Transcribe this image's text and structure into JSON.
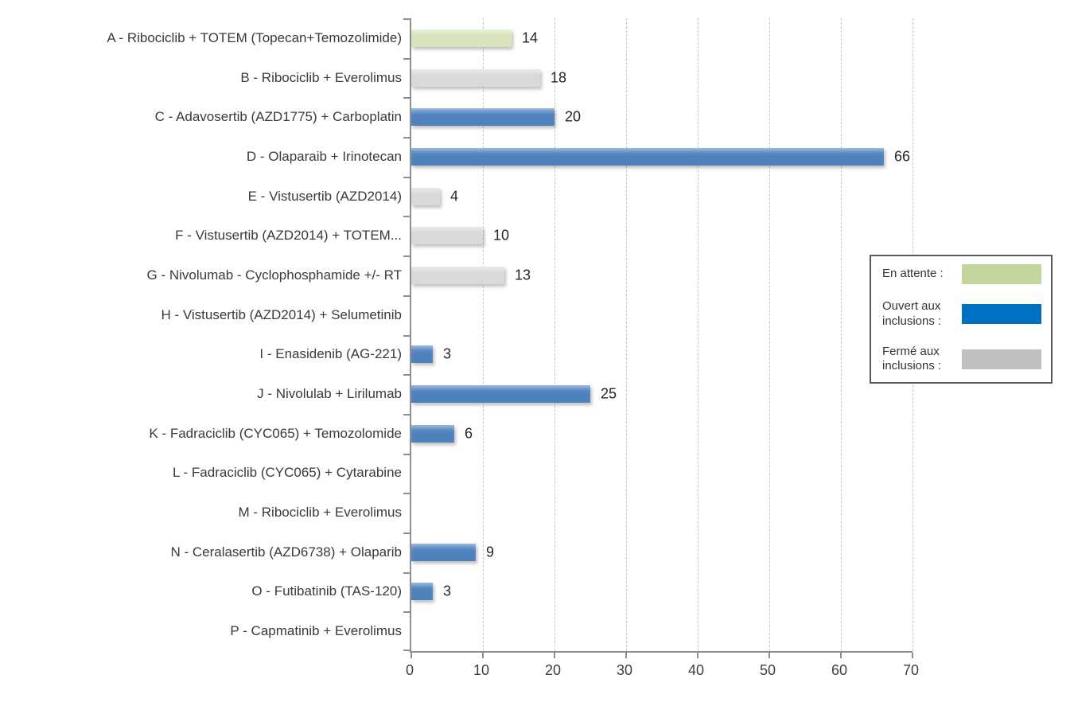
{
  "chart_data": {
    "type": "bar",
    "orientation": "horizontal",
    "title": "",
    "xlabel": "",
    "ylabel": "",
    "xlim": [
      0,
      70
    ],
    "x_ticks": [
      0,
      10,
      20,
      30,
      40,
      50,
      60,
      70
    ],
    "grid": "vertical-dashed",
    "rows": [
      {
        "label": "A - Ribociclib + TOTEM (Topecan+Temozolimide)",
        "value": 14,
        "status": "en_attente"
      },
      {
        "label": "B - Ribociclib + Everolimus",
        "value": 18,
        "status": "ferme"
      },
      {
        "label": "C - Adavosertib (AZD1775) + Carboplatin",
        "value": 20,
        "status": "ouvert"
      },
      {
        "label": "D - Olaparaib + Irinotecan",
        "value": 66,
        "status": "ouvert"
      },
      {
        "label": "E - Vistusertib (AZD2014)",
        "value": 4,
        "status": "ferme"
      },
      {
        "label": "F - Vistusertib (AZD2014) + TOTEM...",
        "value": 10,
        "status": "ferme"
      },
      {
        "label": "G - Nivolumab - Cyclophosphamide +/- RT",
        "value": 13,
        "status": "ferme"
      },
      {
        "label": "H - Vistusertib (AZD2014) + Selumetinib",
        "value": 0,
        "status": null
      },
      {
        "label": "I - Enasidenib (AG-221)",
        "value": 3,
        "status": "ouvert"
      },
      {
        "label": "J - Nivolulab + Lirilumab",
        "value": 25,
        "status": "ouvert"
      },
      {
        "label": "K - Fadraciclib (CYC065) + Temozolomide",
        "value": 6,
        "status": "ouvert"
      },
      {
        "label": "L - Fadraciclib (CYC065) + Cytarabine",
        "value": 0,
        "status": null
      },
      {
        "label": "M - Ribociclib + Everolimus",
        "value": 0,
        "status": null
      },
      {
        "label": "N - Ceralasertib (AZD6738) + Olaparib",
        "value": 9,
        "status": "ouvert"
      },
      {
        "label": "O - Futibatinib (TAS-120)",
        "value": 3,
        "status": "ouvert"
      },
      {
        "label": "P - Capmatinib + Everolimus",
        "value": 0,
        "status": null
      }
    ],
    "legend": {
      "position": "right",
      "items": [
        {
          "label": "En attente :",
          "status": "en_attente",
          "color": "#c3d69b"
        },
        {
          "label": "Ouvert aux inclusions :",
          "status": "ouvert",
          "color": "#0070c0"
        },
        {
          "label": "Fermé aux inclusions :",
          "status": "ferme",
          "color": "#bfbfbf"
        }
      ]
    },
    "colors": {
      "bar_en_attente": "#d8e4bc",
      "bar_ouvert": "#4f81bd",
      "bar_ferme": "#d9d9d9",
      "axis": "#8f8f8f",
      "gridline": "#c6c6c6",
      "value_label": "#262626",
      "category_label": "#3a3a3a"
    }
  }
}
